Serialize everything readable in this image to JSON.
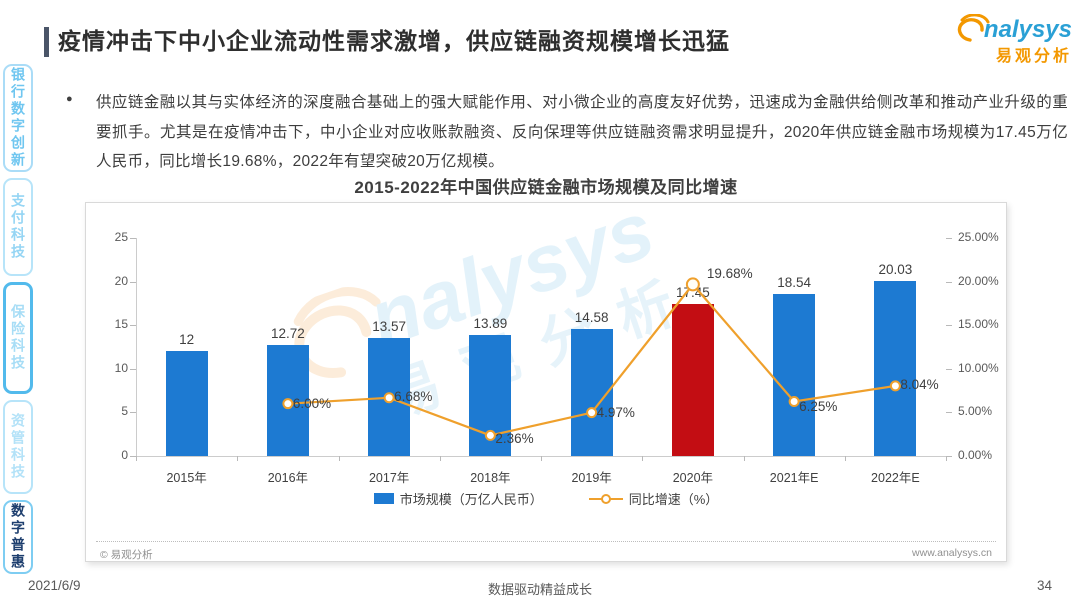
{
  "header": {
    "title": "疫情冲击下中小企业流动性需求激增，供应链融资规模增长迅猛",
    "logo": {
      "brand": "nalysys",
      "brand_cn": "易观分析"
    }
  },
  "sidebar": {
    "items": [
      {
        "label": "银行数字创新",
        "state": "default"
      },
      {
        "label": "支付科技",
        "state": "default"
      },
      {
        "label": "保险科技",
        "state": "selected-border"
      },
      {
        "label": "资管科技",
        "state": "default"
      },
      {
        "label": "数字普惠",
        "state": "active"
      }
    ]
  },
  "intro": {
    "bullet": "●",
    "text": "供应链金融以其与实体经济的深度融合基础上的强大赋能作用、对小微企业的高度友好优势，迅速成为金融供给侧改革和推动产业升级的重要抓手。尤其是在疫情冲击下，中小企业对应收账款融资、反向保理等供应链融资需求明显提升，2020年供应链金融市场规模为17.45万亿人民币，同比增长19.68%，2022年有望突破20万亿规模。"
  },
  "chart_data": {
    "type": "bar+line",
    "title": "2015-2022年中国供应链金融市场规模及同比增速",
    "categories": [
      "2015年",
      "2016年",
      "2017年",
      "2018年",
      "2019年",
      "2020年",
      "2021年E",
      "2022年E"
    ],
    "series": [
      {
        "name": "市场规模（万亿人民币）",
        "type": "bar",
        "values": [
          12,
          12.72,
          13.57,
          13.89,
          14.58,
          17.45,
          18.54,
          20.03
        ],
        "labels": [
          "12",
          "12.72",
          "13.57",
          "13.89",
          "14.58",
          "17.45",
          "18.54",
          "20.03"
        ],
        "highlight_index": 5
      },
      {
        "name": "同比增速（%）",
        "type": "line",
        "values": [
          null,
          6.0,
          6.68,
          2.36,
          4.97,
          19.68,
          6.25,
          8.04
        ],
        "labels": [
          "",
          "6.00%",
          "6.68%",
          "2.36%",
          "4.97%",
          "19.68%",
          "6.25%",
          "8.04%"
        ]
      }
    ],
    "left_axis": {
      "min": 0,
      "max": 25,
      "ticks": [
        "0",
        "5",
        "10",
        "15",
        "20",
        "25"
      ]
    },
    "right_axis": {
      "min": 0,
      "max": 25,
      "ticks": [
        "0.00%",
        "5.00%",
        "10.00%",
        "15.00%",
        "20.00%",
        "25.00%"
      ]
    },
    "colors": {
      "bar": "#1d7ad2",
      "bar_highlight": "#c30d13",
      "line": "#efa02c"
    },
    "legend_position": "bottom",
    "xlabel": "",
    "ylabel": ""
  },
  "card_footer": {
    "copyright": "© 易观分析",
    "website": "www.analysys.cn"
  },
  "watermark": {
    "brand": "nalysys",
    "brand_cn": "易观分析"
  },
  "page_footer": {
    "date": "2021/6/9",
    "center": "数据驱动精益成长",
    "page": "34"
  }
}
